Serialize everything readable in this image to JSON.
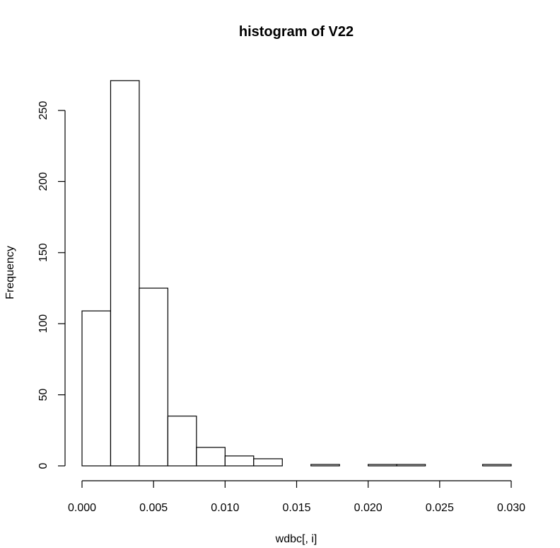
{
  "chart_data": {
    "type": "histogram",
    "title": "histogram of  V22",
    "xlabel": "wdbc[, i]",
    "ylabel": "Frequency",
    "bin_edges": [
      0.0,
      0.002,
      0.004,
      0.006,
      0.008,
      0.01,
      0.012,
      0.014,
      0.016,
      0.018,
      0.02,
      0.022,
      0.024,
      0.026,
      0.028,
      0.03
    ],
    "counts": [
      109,
      271,
      125,
      35,
      13,
      7,
      5,
      0,
      1,
      0,
      1,
      1,
      0,
      0,
      1
    ],
    "xlim": [
      0.0,
      0.03
    ],
    "ylim": [
      0,
      271
    ],
    "x_ticks": [
      0.0,
      0.005,
      0.01,
      0.015,
      0.02,
      0.025,
      0.03
    ],
    "x_tick_labels": [
      "0.000",
      "0.005",
      "0.010",
      "0.015",
      "0.020",
      "0.025",
      "0.030"
    ],
    "y_ticks": [
      0,
      50,
      100,
      150,
      200,
      250
    ],
    "y_tick_labels": [
      "0",
      "50",
      "100",
      "150",
      "200",
      "250"
    ],
    "bar_fill": "#ffffff",
    "bar_stroke": "#000000"
  }
}
